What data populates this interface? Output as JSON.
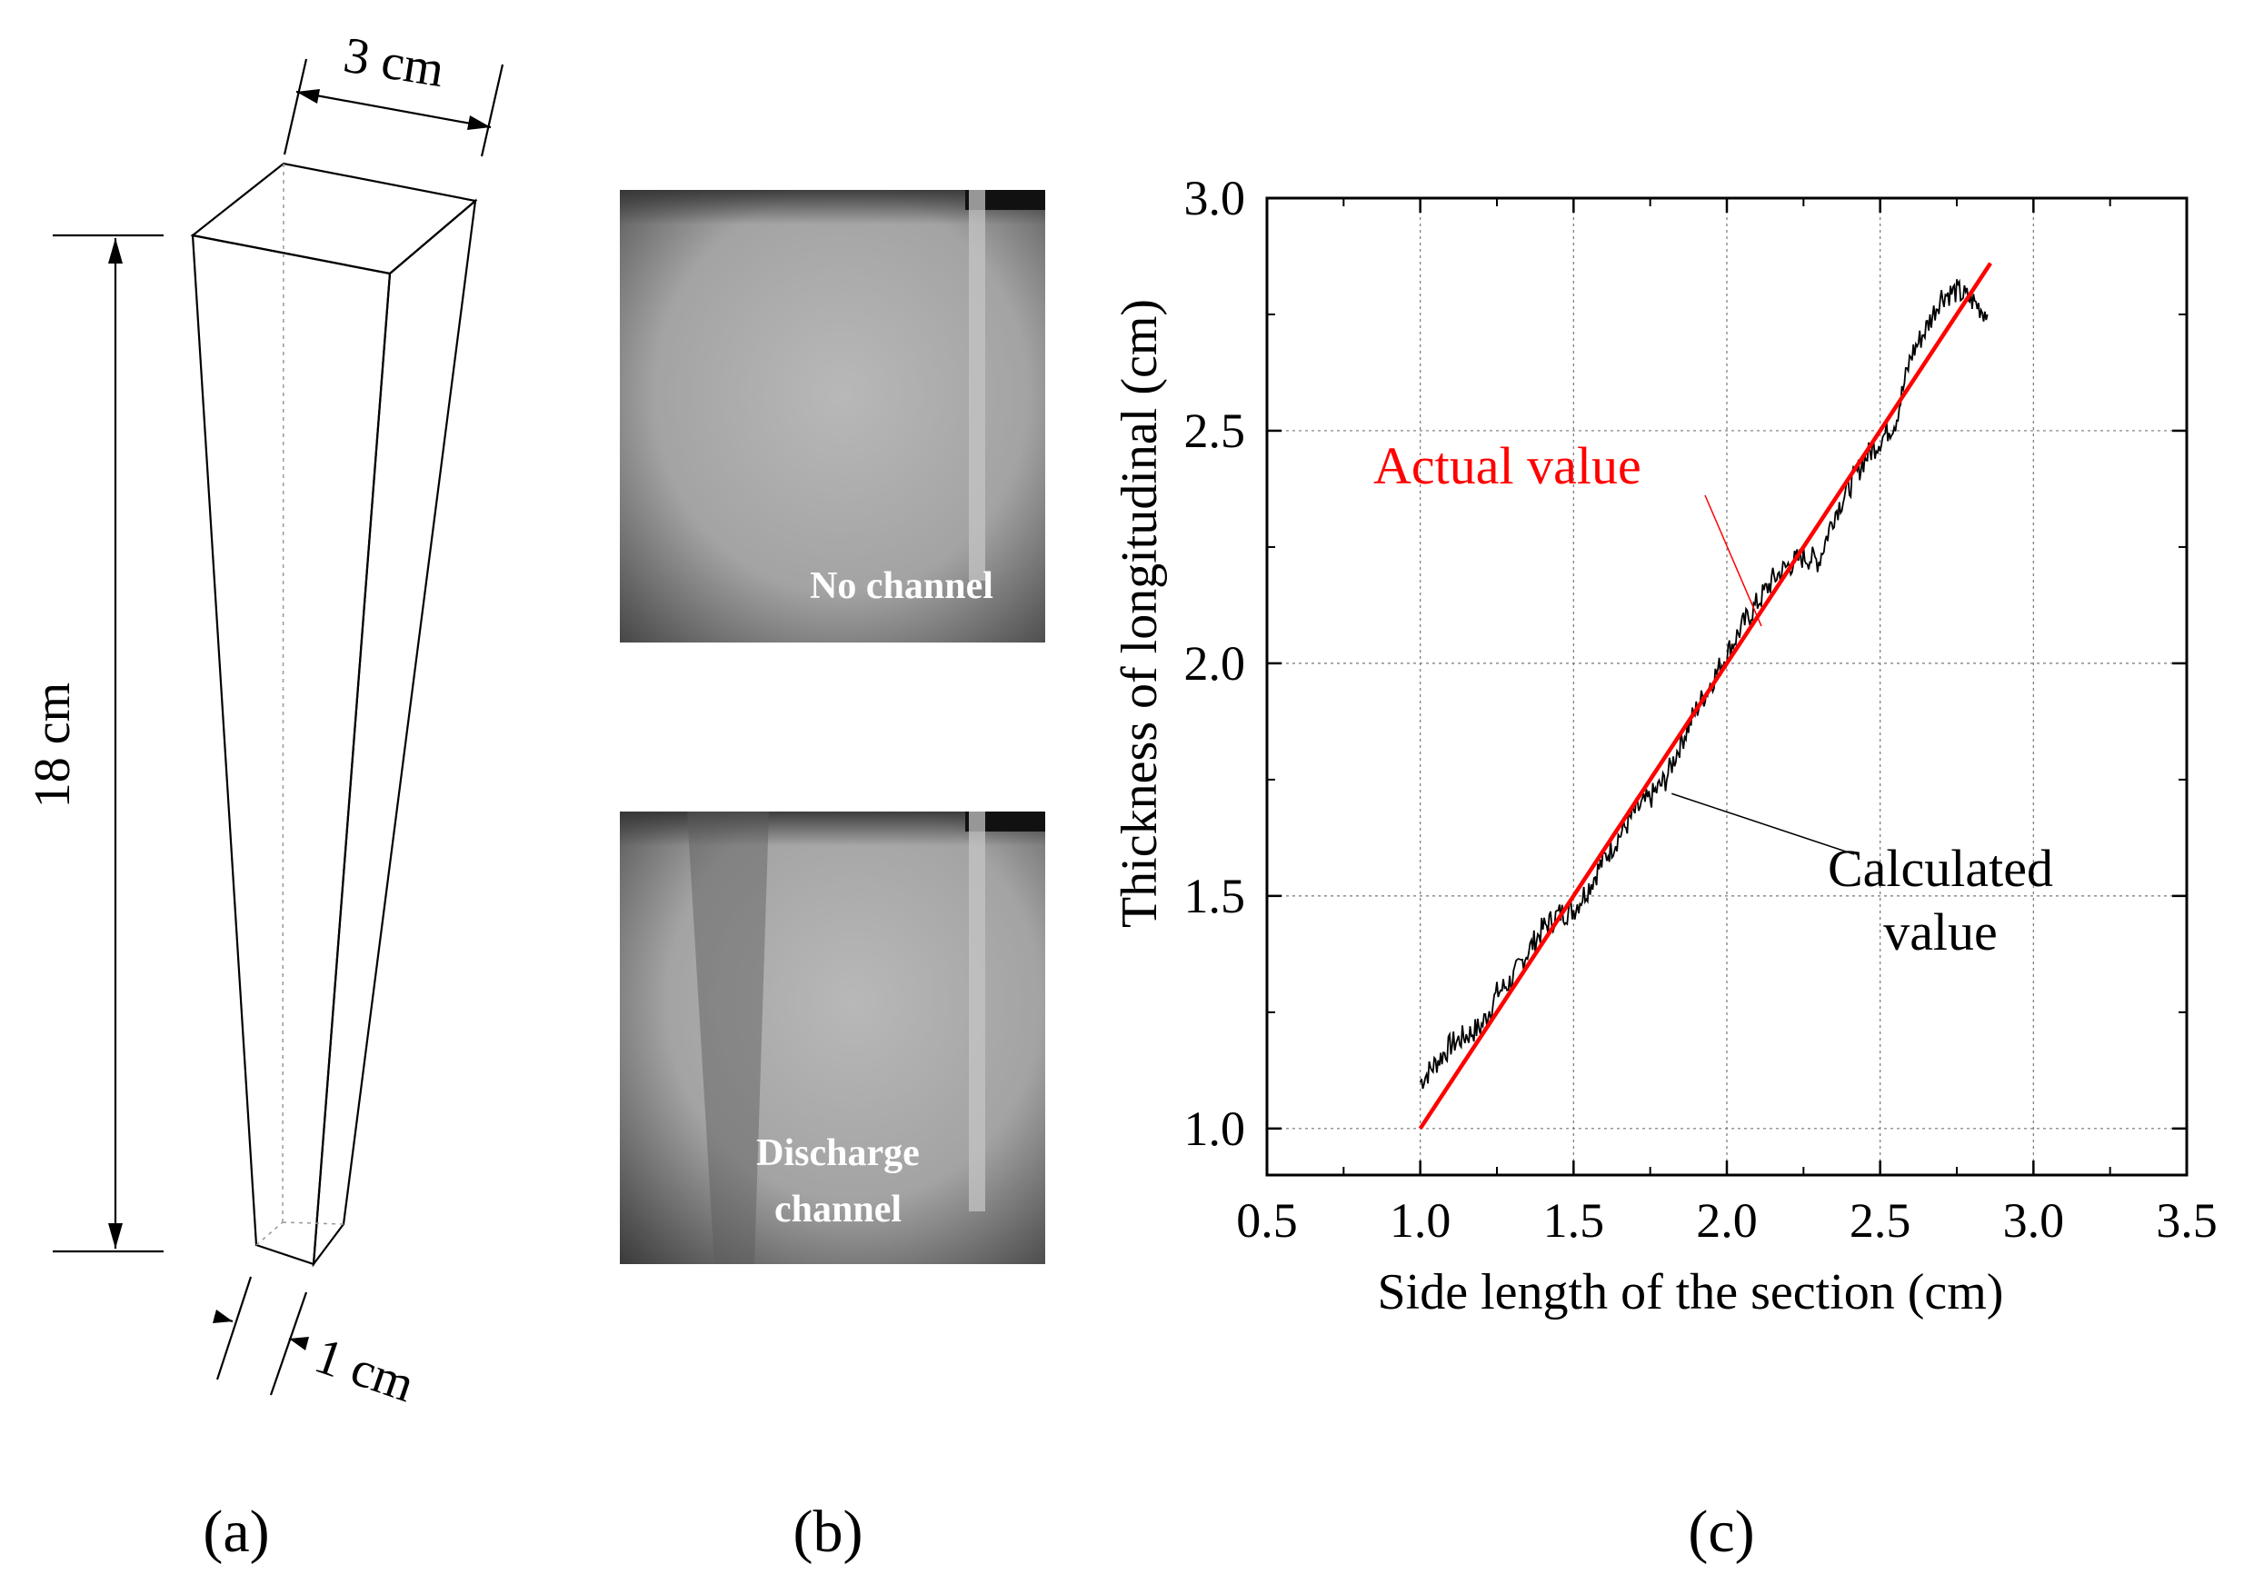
{
  "panel_a": {
    "label": "(a)",
    "dim_width_top": "3 cm",
    "dim_height": "18 cm",
    "dim_width_bottom": "1 cm"
  },
  "panel_b": {
    "label": "(b)",
    "images": [
      {
        "caption": "No channel"
      },
      {
        "caption_line1": "Discharge",
        "caption_line2": "channel"
      }
    ]
  },
  "panel_c": {
    "label": "(c)"
  },
  "chart_data": {
    "type": "line",
    "xlabel": "Side length of the section  (cm)",
    "ylabel": "Thickness of longitudinal (cm)",
    "xlim": [
      0.5,
      3.5
    ],
    "ylim": [
      0.9,
      3.0
    ],
    "xticks": [
      "0.5",
      "1.0",
      "1.5",
      "2.0",
      "2.5",
      "3.0",
      "3.5"
    ],
    "yticks": [
      "1.0",
      "1.5",
      "2.0",
      "2.5",
      "3.0"
    ],
    "grid": true,
    "series": [
      {
        "name": "Actual value",
        "color": "#ff0000",
        "x": [
          1.0,
          2.86
        ],
        "y": [
          1.0,
          2.86
        ]
      },
      {
        "name": "Calculated value",
        "color": "#000000",
        "x": [
          1.0,
          1.05,
          1.1,
          1.15,
          1.2,
          1.25,
          1.3,
          1.35,
          1.4,
          1.45,
          1.5,
          1.55,
          1.6,
          1.65,
          1.7,
          1.75,
          1.8,
          1.85,
          1.9,
          1.95,
          2.0,
          2.05,
          2.1,
          2.15,
          2.2,
          2.25,
          2.3,
          2.35,
          2.4,
          2.45,
          2.5,
          2.55,
          2.6,
          2.65,
          2.7,
          2.75,
          2.8,
          2.85
        ],
        "y": [
          1.1,
          1.14,
          1.18,
          1.2,
          1.22,
          1.29,
          1.32,
          1.38,
          1.43,
          1.46,
          1.47,
          1.52,
          1.58,
          1.63,
          1.68,
          1.71,
          1.75,
          1.83,
          1.9,
          1.96,
          2.02,
          2.08,
          2.13,
          2.18,
          2.21,
          2.23,
          2.22,
          2.32,
          2.38,
          2.44,
          2.48,
          2.52,
          2.66,
          2.72,
          2.79,
          2.8,
          2.78,
          2.75
        ]
      }
    ],
    "annotations": [
      {
        "text": "Actual value",
        "color": "#ff0000"
      },
      {
        "text_line1": "Calculated",
        "text_line2": "value",
        "color": "#000000"
      }
    ]
  }
}
